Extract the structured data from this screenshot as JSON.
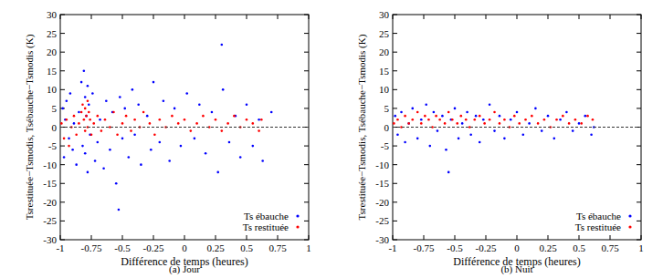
{
  "chart_data": [
    {
      "type": "scatter",
      "title": "(a) Jour",
      "xlabel": "Différence de temps (heures)",
      "ylabel": "Tsrestituée−Tsmodis, Tsébauche−Tsmodis (K)",
      "xlim": [
        -1,
        1
      ],
      "xticks": [
        -1,
        -0.75,
        -0.5,
        -0.25,
        0,
        0.25,
        0.5,
        0.75,
        1
      ],
      "ylim": [
        -30,
        30
      ],
      "yticks": [
        -30,
        -25,
        -20,
        -15,
        -10,
        -5,
        0,
        5,
        10,
        15,
        20,
        25,
        30
      ],
      "legend": "lower right",
      "reference_line": 0,
      "series": [
        {
          "name": "Ts ébauche",
          "color": "#0000ff",
          "marker": "dot",
          "x": [
            -0.98,
            -0.97,
            -0.96,
            -0.95,
            -0.93,
            -0.92,
            -0.9,
            -0.89,
            -0.87,
            -0.85,
            -0.83,
            -0.82,
            -0.81,
            -0.8,
            -0.8,
            -0.79,
            -0.78,
            -0.78,
            -0.77,
            -0.76,
            -0.74,
            -0.72,
            -0.7,
            -0.68,
            -0.65,
            -0.63,
            -0.6,
            -0.58,
            -0.55,
            -0.52,
            -0.5,
            -0.48,
            -0.45,
            -0.42,
            -0.4,
            -0.37,
            -0.35,
            -0.3,
            -0.27,
            -0.25,
            -0.2,
            -0.17,
            -0.12,
            -0.08,
            -0.03,
            0.02,
            0.08,
            0.12,
            0.17,
            0.22,
            0.27,
            0.31,
            0.36,
            0.41,
            0.45,
            0.5,
            0.55,
            0.6,
            0.63,
            0.7,
            -0.53,
            0.3
          ],
          "values": [
            5,
            -8,
            2,
            7,
            -3,
            9,
            -6,
            1,
            -10,
            4,
            12,
            -5,
            15,
            8,
            -7,
            3,
            11,
            -12,
            6,
            -2,
            9,
            -9,
            -4,
            2,
            -11,
            7,
            -6,
            4,
            -15,
            8,
            -3,
            5,
            -8,
            10,
            -2,
            6,
            -10,
            3,
            -6,
            12,
            -4,
            7,
            -9,
            5,
            -5,
            9,
            -3,
            6,
            -7,
            4,
            -12,
            10,
            -4,
            3,
            -8,
            6,
            -5,
            2,
            -9,
            4,
            -22,
            22
          ]
        },
        {
          "name": "Ts restituée",
          "color": "#ff0000",
          "marker": "dot",
          "x": [
            -0.99,
            -0.97,
            -0.95,
            -0.93,
            -0.91,
            -0.89,
            -0.87,
            -0.85,
            -0.83,
            -0.82,
            -0.81,
            -0.8,
            -0.8,
            -0.79,
            -0.78,
            -0.78,
            -0.77,
            -0.76,
            -0.75,
            -0.73,
            -0.7,
            -0.67,
            -0.64,
            -0.6,
            -0.57,
            -0.54,
            -0.5,
            -0.47,
            -0.43,
            -0.4,
            -0.36,
            -0.33,
            -0.28,
            -0.24,
            -0.2,
            -0.15,
            -0.1,
            -0.05,
            0,
            0.05,
            0.1,
            0.15,
            0.2,
            0.25,
            0.3,
            0.35,
            0.4,
            0.45,
            0.5,
            0.55,
            0.6,
            0.62
          ],
          "values": [
            1,
            -3,
            2,
            -5,
            0,
            3,
            -2,
            1,
            4,
            6,
            2,
            5,
            -1,
            3,
            7,
            0,
            4,
            2,
            -2,
            1,
            3,
            -1,
            2,
            0,
            4,
            -2,
            1,
            3,
            -1,
            2,
            0,
            4,
            1,
            -2,
            2,
            0,
            3,
            1,
            2,
            -1,
            1,
            3,
            0,
            2,
            -1,
            1,
            3,
            0,
            2,
            1,
            -1,
            2
          ]
        }
      ]
    },
    {
      "type": "scatter",
      "title": "(b) Nuit",
      "xlabel": "Différence de temps (heures)",
      "ylabel": "Tsrestituée−Tsmodis, Tsébauche−Tsmodis (K)",
      "xlim": [
        -1,
        1
      ],
      "xticks": [
        -1,
        -0.75,
        -0.5,
        -0.25,
        0,
        0.25,
        0.5,
        0.75,
        1
      ],
      "ylim": [
        -30,
        30
      ],
      "yticks": [
        -30,
        -25,
        -20,
        -15,
        -10,
        -5,
        0,
        5,
        10,
        15,
        20,
        25,
        30
      ],
      "legend": "lower right",
      "reference_line": 0,
      "series": [
        {
          "name": "Ts ébauche",
          "color": "#0000ff",
          "marker": "dot",
          "x": [
            -0.98,
            -0.96,
            -0.93,
            -0.9,
            -0.87,
            -0.84,
            -0.8,
            -0.77,
            -0.73,
            -0.7,
            -0.67,
            -0.64,
            -0.6,
            -0.57,
            -0.53,
            -0.5,
            -0.47,
            -0.44,
            -0.4,
            -0.37,
            -0.33,
            -0.3,
            -0.27,
            -0.22,
            -0.18,
            -0.14,
            -0.1,
            -0.05,
            0,
            0.05,
            0.1,
            0.15,
            0.2,
            0.25,
            0.3,
            0.35,
            0.4,
            0.45,
            0.5,
            0.55,
            0.6,
            0.62,
            -0.55
          ],
          "values": [
            3,
            -2,
            4,
            -4,
            1,
            5,
            -3,
            2,
            6,
            -5,
            4,
            -1,
            3,
            -6,
            2,
            5,
            -3,
            1,
            4,
            -2,
            3,
            -4,
            2,
            6,
            -1,
            3,
            -3,
            2,
            4,
            -2,
            1,
            5,
            -1,
            3,
            -3,
            2,
            4,
            -1,
            1,
            3,
            -2,
            0,
            -12
          ]
        },
        {
          "name": "Ts restituée",
          "color": "#ff0000",
          "marker": "dot",
          "x": [
            -0.99,
            -0.96,
            -0.93,
            -0.9,
            -0.87,
            -0.84,
            -0.8,
            -0.77,
            -0.74,
            -0.71,
            -0.68,
            -0.65,
            -0.62,
            -0.58,
            -0.55,
            -0.52,
            -0.48,
            -0.45,
            -0.41,
            -0.38,
            -0.34,
            -0.3,
            -0.26,
            -0.22,
            -0.18,
            -0.14,
            -0.1,
            -0.06,
            -0.02,
            0.02,
            0.07,
            0.12,
            0.17,
            0.22,
            0.27,
            0.32,
            0.37,
            0.42,
            0.47,
            0.52,
            0.57,
            0.61
          ],
          "values": [
            1,
            2,
            0,
            3,
            1,
            2,
            4,
            1,
            3,
            2,
            0,
            3,
            2,
            1,
            4,
            2,
            1,
            3,
            2,
            0,
            2,
            3,
            1,
            2,
            4,
            1,
            2,
            0,
            3,
            1,
            2,
            3,
            1,
            2,
            0,
            2,
            3,
            1,
            2,
            1,
            3,
            2
          ]
        }
      ]
    }
  ]
}
